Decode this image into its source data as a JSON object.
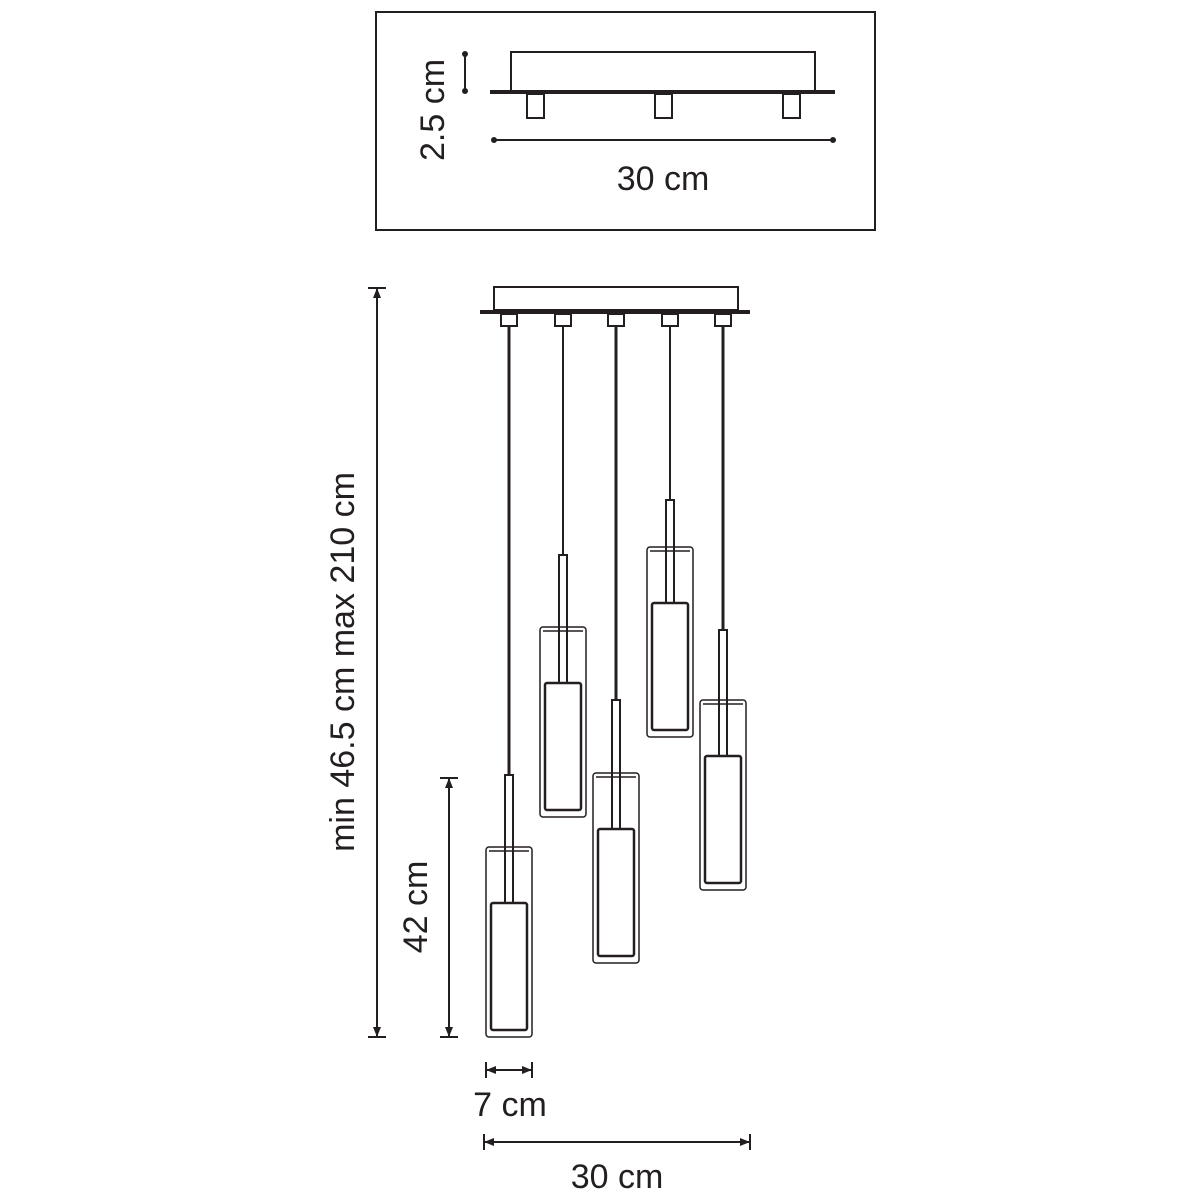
{
  "top_view": {
    "height_label": "2.5 cm",
    "width_label": "30 cm"
  },
  "main_view": {
    "total_height_label": "min 46.5 cm max 210 cm",
    "shade_height_label": "42 cm",
    "shade_width_label": "7 cm",
    "total_width_label": "30 cm",
    "pendant_count": 5
  },
  "colors": {
    "line": "#231f20",
    "background": "#ffffff"
  }
}
